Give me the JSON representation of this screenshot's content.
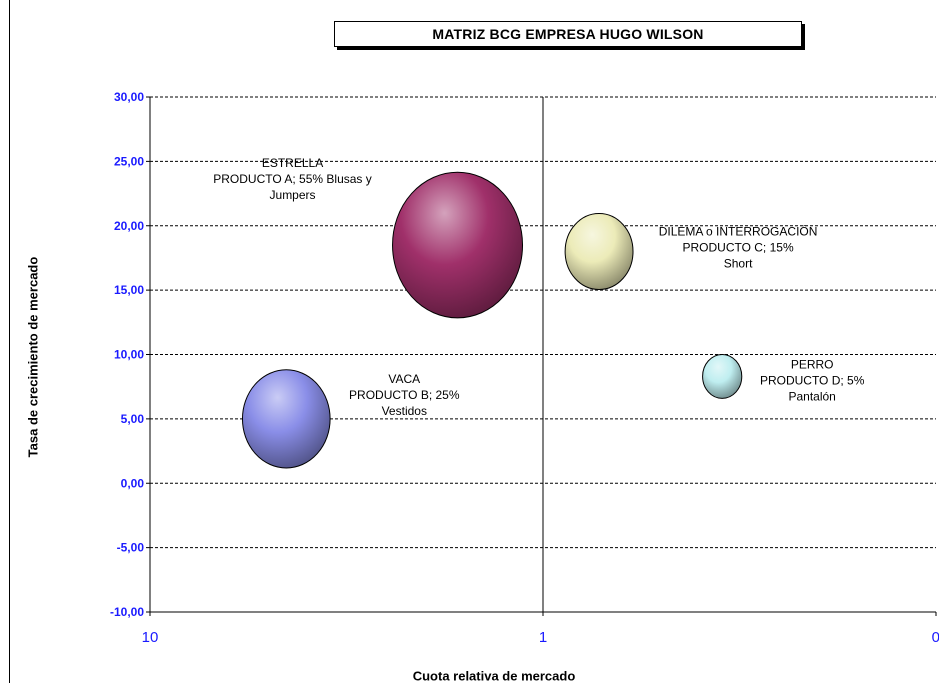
{
  "chart_data": {
    "type": "bubble",
    "title": "MATRIZ BCG  EMPRESA HUGO WILSON",
    "xlabel": "Cuota relativa de mercado",
    "ylabel": "Tasa de crecimiento de mercado",
    "x_scale": "log-reversed",
    "xlim": [
      10,
      0.1
    ],
    "ylim": [
      -10,
      30
    ],
    "x_ticks": [
      "10",
      "1",
      "0"
    ],
    "y_ticks": [
      "30,00",
      "25,00",
      "20,00",
      "15,00",
      "10,00",
      "5,00",
      "0,00",
      "-5,00",
      "-10,00"
    ],
    "gridlines": "horizontal dashed",
    "divider_x": 1,
    "bubbles": [
      {
        "name": "PRODUCTO A",
        "quadrant": "ESTRELLA",
        "share_label": "55%",
        "desc": "Blusas y Jumpers",
        "x": 1.65,
        "y": 18.5,
        "size": 55,
        "color": "#a0306a",
        "label": [
          "ESTRELLA",
          "PRODUCTO A; 55%  Blusas y",
          "Jumpers"
        ]
      },
      {
        "name": "PRODUCTO B",
        "quadrant": "VACA",
        "share_label": "25%",
        "desc": "Vestidos",
        "x": 4.5,
        "y": 5.0,
        "size": 25,
        "color": "#8a8ee8",
        "label": [
          "VACA",
          "PRODUCTO B; 25%",
          "Vestidos"
        ]
      },
      {
        "name": "PRODUCTO C",
        "quadrant": "DILEMA o INTERROGACIÓN",
        "share_label": "15%",
        "desc": "Short",
        "x": 0.72,
        "y": 18.0,
        "size": 15,
        "color": "#ecebb8",
        "label": [
          "DILEMA o INTERROGACIÓN",
          "PRODUCTO C; 15%",
          "Short"
        ]
      },
      {
        "name": "PRODUCTO D",
        "quadrant": "PERRO",
        "share_label": "5%",
        "desc": "Pantalón",
        "x": 0.35,
        "y": 8.3,
        "size": 5,
        "color": "#bfeef0",
        "label": [
          "PERRO",
          "PRODUCTO D; 5%",
          "Pantalón"
        ]
      }
    ]
  }
}
